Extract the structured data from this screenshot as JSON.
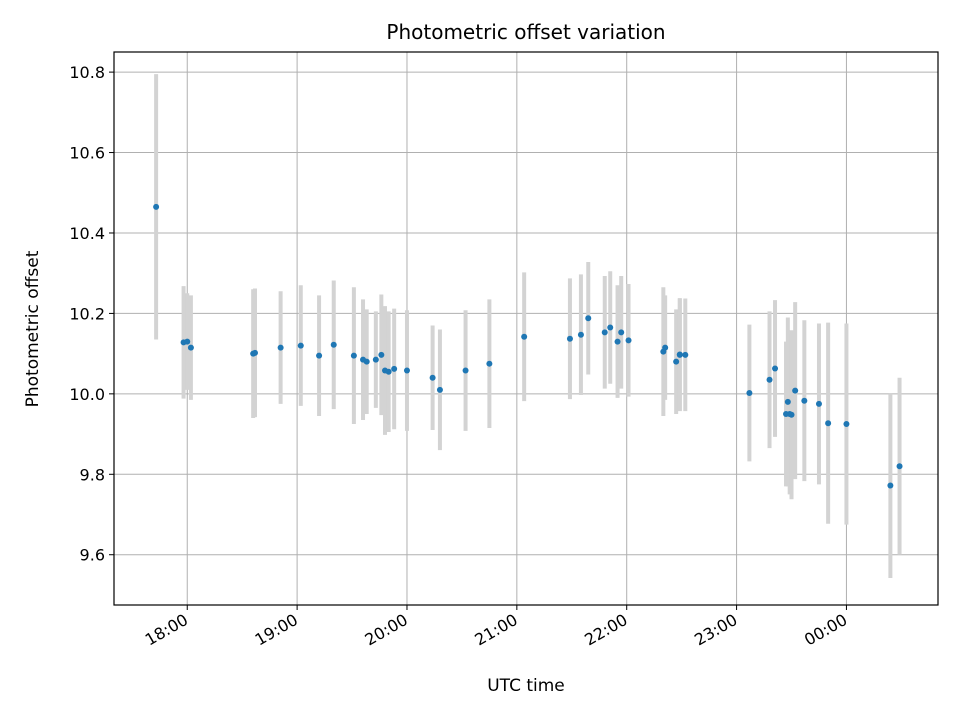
{
  "chart_data": {
    "type": "scatter",
    "title": "Photometric offset variation",
    "xlabel": "UTC time",
    "ylabel": "Photometric offset",
    "grid": true,
    "legend": "none",
    "xlim": [
      "17:20",
      "00:50"
    ],
    "ylim": [
      9.475,
      10.85
    ],
    "x_ticks": [
      "18:00",
      "19:00",
      "20:00",
      "21:00",
      "22:00",
      "23:00",
      "00:00"
    ],
    "y_ticks": [
      "9.6",
      "9.8",
      "10.0",
      "10.2",
      "10.4",
      "10.6",
      "10.8"
    ],
    "colors": {
      "point": "#1f77b4",
      "errorbar": "#d3d3d3",
      "grid": "#b0b0b0"
    },
    "series": [
      {
        "x": [
          "17:43",
          "17:58",
          "18:00",
          "18:02",
          "18:36",
          "18:37",
          "18:51",
          "19:02",
          "19:12",
          "19:20",
          "19:31",
          "19:36",
          "19:38",
          "19:43",
          "19:46",
          "19:48",
          "19:50",
          "19:53",
          "20:00",
          "20:14",
          "20:18",
          "20:32",
          "20:45",
          "21:04",
          "21:29",
          "21:35",
          "21:39",
          "21:48",
          "21:51",
          "21:55",
          "21:57",
          "22:01",
          "22:20",
          "22:21",
          "22:27",
          "22:29",
          "22:29",
          "22:32",
          "23:07",
          "23:18",
          "23:21",
          "23:27",
          "23:28",
          "23:29",
          "23:30",
          "23:32",
          "23:37",
          "23:45",
          "23:50",
          "24:00",
          "24:24",
          "24:29"
        ],
        "y": [
          10.465,
          10.128,
          10.13,
          10.115,
          10.1,
          10.102,
          10.115,
          10.12,
          10.095,
          10.122,
          10.095,
          10.085,
          10.08,
          10.085,
          10.097,
          10.058,
          10.055,
          10.062,
          10.058,
          10.04,
          10.01,
          10.058,
          10.075,
          10.142,
          10.137,
          10.147,
          10.188,
          10.153,
          10.165,
          10.13,
          10.153,
          10.133,
          10.105,
          10.115,
          10.08,
          10.097,
          10.098,
          10.097,
          10.002,
          10.035,
          10.063,
          9.95,
          9.98,
          9.95,
          9.948,
          10.008,
          9.983,
          9.975,
          9.927,
          9.925,
          9.772,
          9.82
        ],
        "yerr": [
          0.33,
          0.14,
          0.12,
          0.13,
          0.16,
          0.16,
          0.14,
          0.15,
          0.15,
          0.16,
          0.17,
          0.15,
          0.13,
          0.12,
          0.15,
          0.16,
          0.15,
          0.15,
          0.15,
          0.13,
          0.15,
          0.15,
          0.16,
          0.16,
          0.15,
          0.15,
          0.14,
          0.14,
          0.14,
          0.14,
          0.14,
          0.14,
          0.16,
          0.13,
          0.13,
          0.14,
          0.14,
          0.14,
          0.17,
          0.17,
          0.17,
          0.18,
          0.21,
          0.2,
          0.21,
          0.22,
          0.2,
          0.2,
          0.25,
          0.25,
          0.23,
          0.22
        ]
      }
    ]
  }
}
